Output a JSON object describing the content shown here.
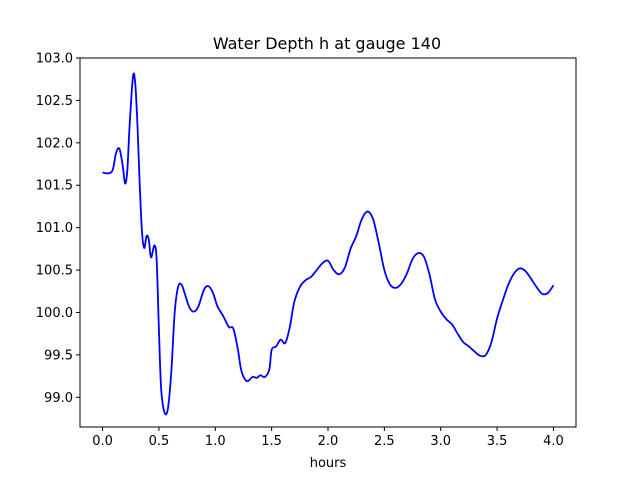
{
  "chart_data": {
    "type": "line",
    "title": "Water Depth h at gauge 140",
    "xlabel": "hours",
    "ylabel": "",
    "xlim": [
      -0.2,
      4.2
    ],
    "ylim": [
      98.65,
      103.0
    ],
    "x_ticks": [
      0.0,
      0.5,
      1.0,
      1.5,
      2.0,
      2.5,
      3.0,
      3.5,
      4.0
    ],
    "x_tick_labels": [
      "0.0",
      "0.5",
      "1.0",
      "1.5",
      "2.0",
      "2.5",
      "3.0",
      "3.5",
      "4.0"
    ],
    "y_ticks": [
      99.0,
      99.5,
      100.0,
      100.5,
      101.0,
      101.5,
      102.0,
      102.5,
      103.0
    ],
    "y_tick_labels": [
      "99.0",
      "99.5",
      "100.0",
      "100.5",
      "101.0",
      "101.5",
      "102.0",
      "102.5",
      "103.0"
    ],
    "grid": false,
    "series": [
      {
        "color": "#0000ff",
        "points": [
          [
            0.0,
            101.65
          ],
          [
            0.05,
            101.64
          ],
          [
            0.09,
            101.68
          ],
          [
            0.12,
            101.88
          ],
          [
            0.15,
            101.93
          ],
          [
            0.18,
            101.72
          ],
          [
            0.2,
            101.52
          ],
          [
            0.22,
            101.68
          ],
          [
            0.24,
            102.2
          ],
          [
            0.27,
            102.78
          ],
          [
            0.29,
            102.7
          ],
          [
            0.31,
            102.2
          ],
          [
            0.33,
            101.5
          ],
          [
            0.35,
            100.95
          ],
          [
            0.37,
            100.76
          ],
          [
            0.39,
            100.9
          ],
          [
            0.41,
            100.86
          ],
          [
            0.43,
            100.65
          ],
          [
            0.46,
            100.79
          ],
          [
            0.48,
            100.62
          ],
          [
            0.5,
            99.8
          ],
          [
            0.52,
            99.1
          ],
          [
            0.55,
            98.82
          ],
          [
            0.58,
            98.87
          ],
          [
            0.61,
            99.3
          ],
          [
            0.64,
            100.0
          ],
          [
            0.67,
            100.3
          ],
          [
            0.7,
            100.33
          ],
          [
            0.73,
            100.22
          ],
          [
            0.77,
            100.06
          ],
          [
            0.81,
            100.01
          ],
          [
            0.85,
            100.07
          ],
          [
            0.9,
            100.27
          ],
          [
            0.94,
            100.31
          ],
          [
            0.98,
            100.23
          ],
          [
            1.02,
            100.07
          ],
          [
            1.07,
            99.96
          ],
          [
            1.12,
            99.83
          ],
          [
            1.16,
            99.81
          ],
          [
            1.2,
            99.57
          ],
          [
            1.23,
            99.32
          ],
          [
            1.27,
            99.2
          ],
          [
            1.3,
            99.2
          ],
          [
            1.33,
            99.24
          ],
          [
            1.37,
            99.23
          ],
          [
            1.4,
            99.26
          ],
          [
            1.44,
            99.24
          ],
          [
            1.48,
            99.33
          ],
          [
            1.5,
            99.56
          ],
          [
            1.54,
            99.6
          ],
          [
            1.58,
            99.68
          ],
          [
            1.62,
            99.64
          ],
          [
            1.66,
            99.82
          ],
          [
            1.7,
            100.12
          ],
          [
            1.75,
            100.3
          ],
          [
            1.8,
            100.38
          ],
          [
            1.85,
            100.42
          ],
          [
            1.9,
            100.5
          ],
          [
            1.95,
            100.58
          ],
          [
            2.0,
            100.61
          ],
          [
            2.05,
            100.5
          ],
          [
            2.1,
            100.45
          ],
          [
            2.15,
            100.53
          ],
          [
            2.2,
            100.75
          ],
          [
            2.25,
            100.9
          ],
          [
            2.3,
            101.1
          ],
          [
            2.35,
            101.19
          ],
          [
            2.4,
            101.1
          ],
          [
            2.45,
            100.82
          ],
          [
            2.5,
            100.5
          ],
          [
            2.55,
            100.33
          ],
          [
            2.6,
            100.29
          ],
          [
            2.65,
            100.34
          ],
          [
            2.7,
            100.46
          ],
          [
            2.75,
            100.63
          ],
          [
            2.8,
            100.7
          ],
          [
            2.85,
            100.66
          ],
          [
            2.9,
            100.45
          ],
          [
            2.95,
            100.15
          ],
          [
            3.0,
            100.01
          ],
          [
            3.05,
            99.92
          ],
          [
            3.1,
            99.86
          ],
          [
            3.15,
            99.75
          ],
          [
            3.2,
            99.65
          ],
          [
            3.25,
            99.6
          ],
          [
            3.3,
            99.54
          ],
          [
            3.35,
            99.49
          ],
          [
            3.4,
            99.5
          ],
          [
            3.45,
            99.65
          ],
          [
            3.5,
            99.93
          ],
          [
            3.55,
            100.14
          ],
          [
            3.6,
            100.33
          ],
          [
            3.65,
            100.46
          ],
          [
            3.7,
            100.52
          ],
          [
            3.75,
            100.49
          ],
          [
            3.8,
            100.4
          ],
          [
            3.85,
            100.3
          ],
          [
            3.9,
            100.22
          ],
          [
            3.95,
            100.23
          ],
          [
            4.0,
            100.32
          ]
        ]
      }
    ]
  }
}
